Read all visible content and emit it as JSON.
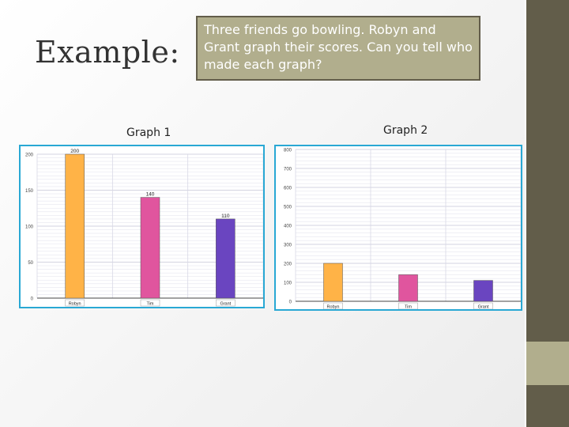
{
  "slide": {
    "title": "Example:",
    "question": "Three friends go bowling. Robyn and Grant graph their scores. Can you tell who made each graph?",
    "graph1_caption": "Graph 1",
    "graph2_caption": "Graph 2"
  },
  "colors": {
    "accent_dark": "#625d4a",
    "accent_light": "#b1ae8d",
    "frame": "#29a8d4"
  },
  "chart_data": [
    {
      "type": "bar",
      "categories": [
        "Robyn",
        "Tim",
        "Grant"
      ],
      "values": [
        200,
        140,
        110
      ],
      "data_labels": [
        "200",
        "140",
        "110"
      ],
      "colors": [
        "#ffb347",
        "#e0559e",
        "#6a45c0"
      ],
      "ylim": [
        0,
        200
      ],
      "yticks": [
        0,
        50,
        100,
        150,
        200
      ],
      "grid": true
    },
    {
      "type": "bar",
      "categories": [
        "Robyn",
        "Tim",
        "Grant"
      ],
      "values": [
        200,
        140,
        110
      ],
      "colors": [
        "#ffb347",
        "#e0559e",
        "#6a45c0"
      ],
      "ylim": [
        0,
        800
      ],
      "yticks": [
        0,
        100,
        200,
        300,
        400,
        500,
        600,
        700,
        800
      ],
      "grid": true
    }
  ]
}
